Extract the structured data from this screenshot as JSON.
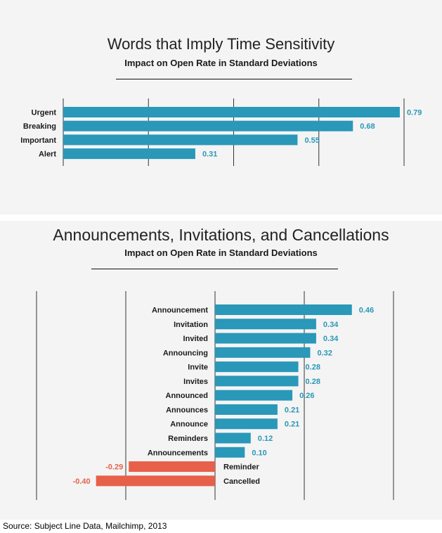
{
  "colors": {
    "positive": "#2a98b8",
    "negative": "#e7604a",
    "grid": "#333333",
    "panel": "#f4f4f4"
  },
  "chart_data": [
    {
      "type": "bar",
      "orientation": "horizontal",
      "title": "Words that Imply Time Sensitivity",
      "subtitle": "Impact on Open Rate in Standard Deviations",
      "categories": [
        "Urgent",
        "Breaking",
        "Important",
        "Alert"
      ],
      "values": [
        0.79,
        0.68,
        0.55,
        0.31
      ],
      "value_labels": [
        "0.79",
        "0.68",
        "0.55",
        "0.31"
      ],
      "xlim": [
        0,
        0.8
      ],
      "grid_values": [
        0,
        0.2,
        0.4,
        0.6,
        0.8
      ],
      "grid": true
    },
    {
      "type": "bar",
      "orientation": "horizontal",
      "title": "Announcements, Invitations, and Cancellations",
      "subtitle": "Impact on Open Rate in Standard Deviations",
      "categories": [
        "Announcement",
        "Invitation",
        "Invited",
        "Announcing",
        "Invite",
        "Invites",
        "Announced",
        "Announces",
        "Announce",
        "Reminders",
        "Announcements",
        "Reminder",
        "Cancelled"
      ],
      "values": [
        0.46,
        0.34,
        0.34,
        0.32,
        0.28,
        0.28,
        0.26,
        0.21,
        0.21,
        0.12,
        0.1,
        -0.29,
        -0.4
      ],
      "value_labels": [
        "0.46",
        "0.34",
        "0.34",
        "0.32",
        "0.28",
        "0.28",
        "0.26",
        "0.21",
        "0.21",
        "0.12",
        "0.10",
        "-0.29",
        "-0.40"
      ],
      "xlim": [
        -0.6,
        0.6
      ],
      "grid_values": [
        -0.6,
        -0.3,
        0,
        0.3,
        0.6
      ],
      "grid": true
    }
  ],
  "source": "Source: Subject Line Data, Mailchimp, 2013"
}
